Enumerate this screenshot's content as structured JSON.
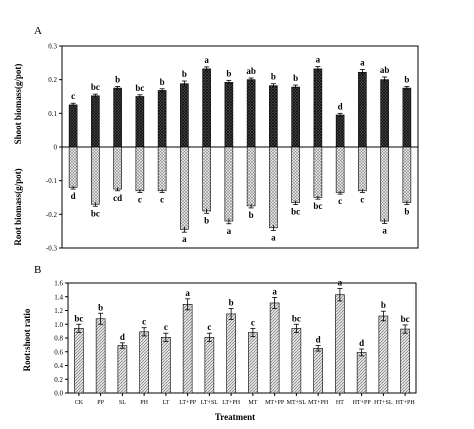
{
  "chart_data": [
    {
      "panel": "A",
      "type": "bar",
      "categories": [
        "CK",
        "PP",
        "SL",
        "PH",
        "LT",
        "LT+PP",
        "LT+SL",
        "LT+PH",
        "MT",
        "MT+PP",
        "MT+SL",
        "MT+PH",
        "HT",
        "HT+PP",
        "HT+SL",
        "HT+PH"
      ],
      "series": [
        {
          "name": "Shoot biomass(g/pot)",
          "values": [
            0.125,
            0.152,
            0.175,
            0.15,
            0.168,
            0.188,
            0.232,
            0.192,
            0.2,
            0.182,
            0.178,
            0.232,
            0.095,
            0.222,
            0.2,
            0.175
          ],
          "errors": [
            0.005,
            0.005,
            0.005,
            0.005,
            0.005,
            0.008,
            0.006,
            0.006,
            0.005,
            0.006,
            0.006,
            0.007,
            0.005,
            0.008,
            0.008,
            0.005
          ],
          "labels": [
            "c",
            "bc",
            "b",
            "bc",
            "b",
            "b",
            "a",
            "b",
            "ab",
            "b",
            "b",
            "a",
            "d",
            "a",
            "ab",
            "b"
          ]
        },
        {
          "name": "Root biomass(g/pot)",
          "values": [
            -0.12,
            -0.17,
            -0.125,
            -0.13,
            -0.13,
            -0.245,
            -0.19,
            -0.22,
            -0.175,
            -0.24,
            -0.165,
            -0.15,
            -0.135,
            -0.13,
            -0.22,
            -0.165
          ],
          "errors": [
            0.005,
            0.006,
            0.005,
            0.005,
            0.005,
            0.008,
            0.007,
            0.008,
            0.006,
            0.008,
            0.006,
            0.005,
            0.005,
            0.005,
            0.007,
            0.006
          ],
          "labels": [
            "d",
            "bc",
            "cd",
            "c",
            "c",
            "a",
            "b",
            "a",
            "b",
            "a",
            "bc",
            "bc",
            "c",
            "c",
            "a",
            "b"
          ]
        }
      ],
      "ylabel_top": "Shoot biomass(g/pot)",
      "ylabel_bottom": "Root biomass(g/pot)",
      "ylim": [
        -0.3,
        0.3
      ],
      "yticks": [
        "0.3",
        "0.2",
        "0.1",
        "0",
        "-0.1",
        "-0.2",
        "-0.3"
      ]
    },
    {
      "panel": "B",
      "type": "bar",
      "categories": [
        "CK",
        "PP",
        "SL",
        "PH",
        "LT",
        "LT+PP",
        "LT+SL",
        "LT+PH",
        "MT",
        "MT+PP",
        "MT+SL",
        "MT+PH",
        "HT",
        "HT+PP",
        "HT+SL",
        "HT+PH"
      ],
      "series": [
        {
          "name": "Root:shoot ratio",
          "values": [
            0.94,
            1.08,
            0.69,
            0.89,
            0.81,
            1.29,
            0.81,
            1.15,
            0.88,
            1.31,
            0.94,
            0.65,
            1.43,
            0.59,
            1.12,
            0.93
          ],
          "errors": [
            0.06,
            0.08,
            0.04,
            0.06,
            0.06,
            0.08,
            0.06,
            0.08,
            0.06,
            0.08,
            0.06,
            0.04,
            0.09,
            0.05,
            0.07,
            0.06
          ],
          "labels": [
            "bc",
            "b",
            "d",
            "c",
            "c",
            "a",
            "c",
            "b",
            "c",
            "a",
            "bc",
            "d",
            "a",
            "d",
            "b",
            "bc"
          ]
        }
      ],
      "xlabel": "Treatment",
      "ylabel": "Root:shoot ratio",
      "ylim": [
        0,
        1.6
      ],
      "yticks": [
        "0.0",
        "0.2",
        "0.4",
        "0.6",
        "0.8",
        "1.0",
        "1.2",
        "1.4",
        "1.6"
      ]
    }
  ],
  "panels": {
    "a": "A",
    "b": "B"
  },
  "labels": {
    "top_ylabel": "Shoot biomass(g/pot)",
    "bottom_ylabel": "Root biomass(g/pot)",
    "b_ylabel": "Root:shoot ratio",
    "b_xlabel": "Treatment"
  },
  "colors": {
    "shoot_fill": "#3a3a3a",
    "root_fill": "#d6d6d6",
    "ratio_fill": "#bdbdbd",
    "axis": "#000000"
  }
}
